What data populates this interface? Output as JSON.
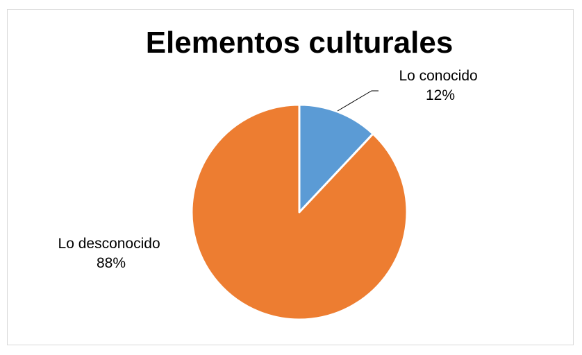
{
  "chart_data": {
    "type": "pie",
    "title": "Elementos culturales",
    "slices": [
      {
        "label": "Lo conocido",
        "value": 12,
        "percent_label": "12%",
        "color": "#5b9bd5"
      },
      {
        "label": "Lo desconocido",
        "value": 88,
        "percent_label": "88%",
        "color": "#ed7d31"
      }
    ],
    "start_angle": "12 o'clock",
    "direction": "clockwise",
    "legend": "none",
    "slice_border_color": "#ffffff"
  }
}
